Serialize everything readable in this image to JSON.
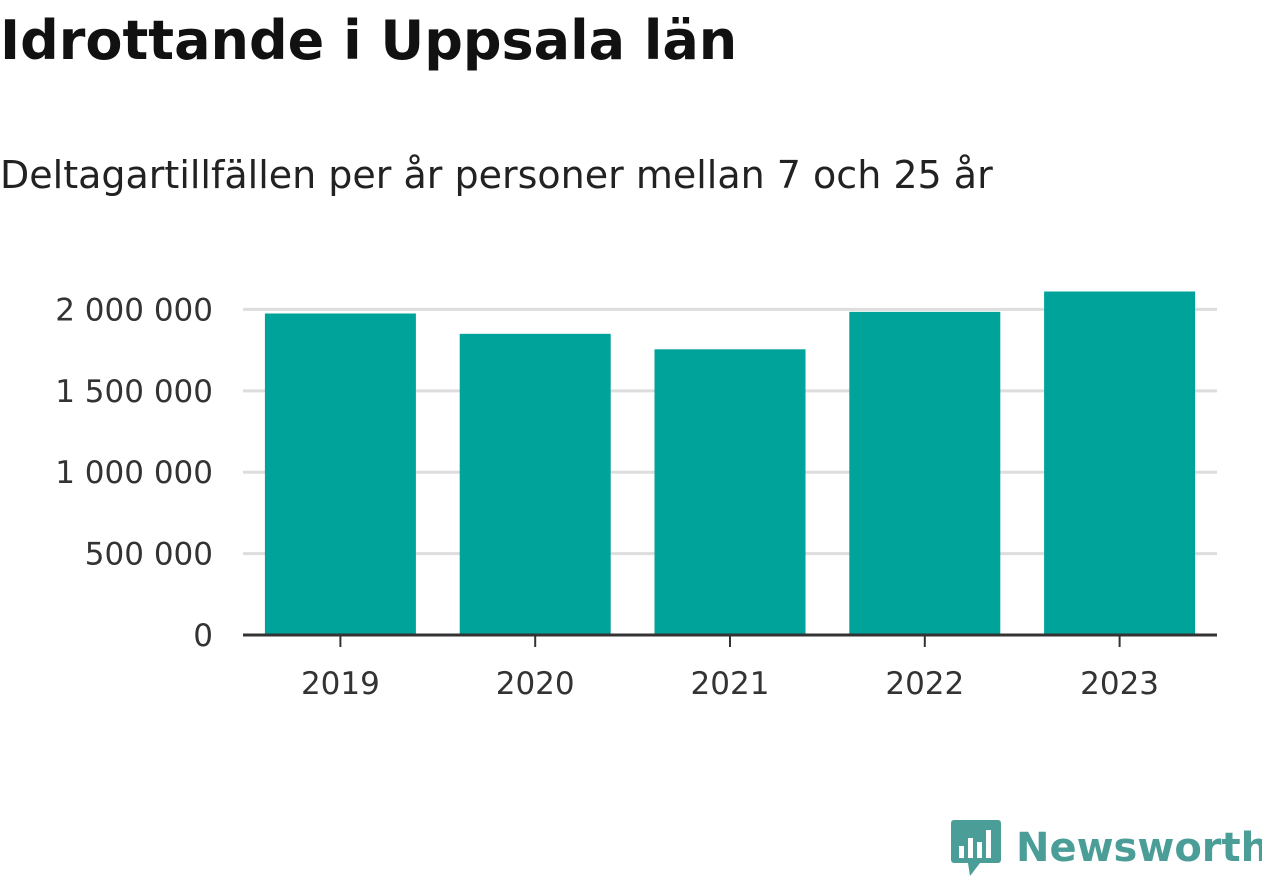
{
  "title": "Idrottande i Uppsala län",
  "subtitle": "Deltagartillfällen per år personer mellan 7 och 25 år",
  "chart_data": {
    "type": "bar",
    "categories": [
      "2019",
      "2020",
      "2021",
      "2022",
      "2023"
    ],
    "values": [
      1975000,
      1850000,
      1755000,
      1985000,
      2110000
    ],
    "ylim": [
      0,
      2150000
    ],
    "yticks": [
      0,
      500000,
      1000000,
      1500000,
      2000000
    ],
    "ytick_labels": [
      "0",
      "500 000",
      "1 000 000",
      "1 500 000",
      "2 000 000"
    ],
    "grid": true,
    "bar_color": "#00a39a",
    "grid_color": "#dddddd",
    "axis_color": "#333333"
  },
  "logo": {
    "text": "Newsworthy",
    "icon": "newsworthy-logo-icon",
    "color": "#4b9e97"
  }
}
